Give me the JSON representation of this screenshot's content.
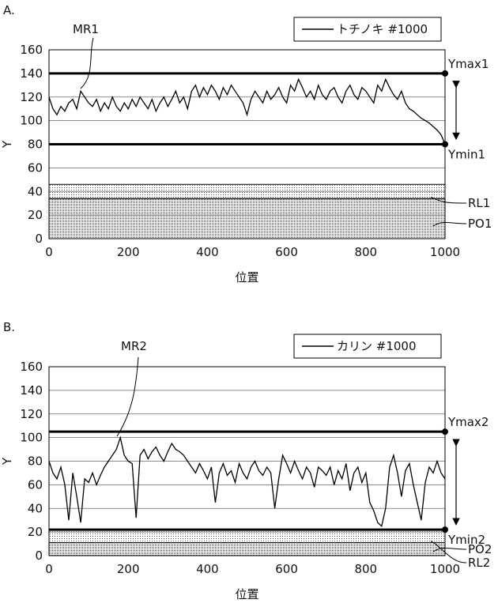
{
  "chart_data": [
    {
      "panel": "A.",
      "type": "line",
      "xlabel": "位置",
      "ylabel": "Y",
      "annotation": "MR1",
      "xlim": [
        0,
        1000
      ],
      "xticks": [
        0,
        200,
        400,
        600,
        800,
        1000
      ],
      "ylim": [
        0,
        160
      ],
      "yticks": [
        0,
        20,
        40,
        60,
        80,
        100,
        120,
        140,
        160
      ],
      "grid": true,
      "x": [
        0,
        10,
        20,
        30,
        40,
        50,
        60,
        70,
        80,
        90,
        100,
        110,
        120,
        130,
        140,
        150,
        160,
        170,
        180,
        190,
        200,
        210,
        220,
        230,
        240,
        250,
        260,
        270,
        280,
        290,
        300,
        310,
        320,
        330,
        340,
        350,
        360,
        370,
        380,
        390,
        400,
        410,
        420,
        430,
        440,
        450,
        460,
        470,
        480,
        490,
        500,
        510,
        520,
        530,
        540,
        550,
        560,
        570,
        580,
        590,
        600,
        610,
        620,
        630,
        640,
        650,
        660,
        670,
        680,
        690,
        700,
        710,
        720,
        730,
        740,
        750,
        760,
        770,
        780,
        790,
        800,
        810,
        820,
        830,
        840,
        850,
        860,
        870,
        880,
        890,
        900,
        910,
        920,
        930,
        940,
        950,
        960,
        970,
        980,
        990,
        1000
      ],
      "series": [
        {
          "name": "トチノキ #1000",
          "color": "#000000",
          "values": [
            120,
            110,
            105,
            112,
            108,
            115,
            118,
            110,
            125,
            120,
            115,
            112,
            118,
            108,
            115,
            110,
            120,
            112,
            108,
            115,
            110,
            118,
            112,
            120,
            115,
            110,
            118,
            108,
            115,
            120,
            112,
            118,
            125,
            115,
            120,
            110,
            125,
            130,
            120,
            128,
            122,
            130,
            125,
            118,
            128,
            122,
            130,
            125,
            120,
            115,
            105,
            118,
            125,
            120,
            115,
            125,
            118,
            122,
            128,
            120,
            115,
            130,
            125,
            135,
            128,
            120,
            125,
            118,
            130,
            122,
            118,
            125,
            128,
            120,
            115,
            125,
            130,
            122,
            118,
            128,
            125,
            120,
            115,
            130,
            125,
            135,
            128,
            122,
            118,
            125,
            115,
            110,
            108,
            105,
            102,
            100,
            98,
            95,
            92,
            88,
            80
          ]
        }
      ],
      "ymax": {
        "value": 140,
        "label": "Ymax1"
      },
      "ymin": {
        "value": 80,
        "label": "Ymin1"
      },
      "reference_line": {
        "value": 34,
        "label": "RL1"
      },
      "region": {
        "value": 46,
        "label": "PO1"
      }
    },
    {
      "panel": "B.",
      "type": "line",
      "xlabel": "位置",
      "ylabel": "Y",
      "annotation": "MR2",
      "xlim": [
        0,
        1000
      ],
      "xticks": [
        0,
        200,
        400,
        600,
        800,
        1000
      ],
      "ylim": [
        0,
        160
      ],
      "yticks": [
        0,
        20,
        40,
        60,
        80,
        100,
        120,
        140,
        160
      ],
      "grid": true,
      "x": [
        0,
        10,
        20,
        30,
        40,
        50,
        60,
        70,
        80,
        90,
        100,
        110,
        120,
        130,
        140,
        150,
        160,
        170,
        180,
        190,
        200,
        210,
        220,
        230,
        240,
        250,
        260,
        270,
        280,
        290,
        300,
        310,
        320,
        330,
        340,
        350,
        360,
        370,
        380,
        390,
        400,
        410,
        420,
        430,
        440,
        450,
        460,
        470,
        480,
        490,
        500,
        510,
        520,
        530,
        540,
        550,
        560,
        570,
        580,
        590,
        600,
        610,
        620,
        630,
        640,
        650,
        660,
        670,
        680,
        690,
        700,
        710,
        720,
        730,
        740,
        750,
        760,
        770,
        780,
        790,
        800,
        810,
        820,
        830,
        840,
        850,
        860,
        870,
        880,
        890,
        900,
        910,
        920,
        930,
        940,
        950,
        960,
        970,
        980,
        990,
        1000
      ],
      "series": [
        {
          "name": "カリン #1000",
          "color": "#000000",
          "values": [
            80,
            70,
            65,
            75,
            60,
            30,
            70,
            50,
            28,
            65,
            62,
            70,
            60,
            68,
            75,
            80,
            85,
            90,
            100,
            85,
            80,
            78,
            32,
            85,
            90,
            82,
            88,
            92,
            85,
            80,
            88,
            95,
            90,
            88,
            85,
            80,
            75,
            70,
            78,
            72,
            65,
            75,
            45,
            70,
            78,
            68,
            72,
            62,
            78,
            70,
            65,
            75,
            80,
            72,
            68,
            75,
            70,
            40,
            65,
            85,
            78,
            70,
            80,
            72,
            65,
            75,
            70,
            58,
            75,
            72,
            68,
            75,
            60,
            72,
            65,
            78,
            55,
            70,
            75,
            62,
            70,
            45,
            38,
            28,
            25,
            40,
            75,
            85,
            70,
            50,
            72,
            78,
            60,
            45,
            30,
            62,
            75,
            70,
            80,
            70,
            65
          ]
        }
      ],
      "ymax": {
        "value": 105,
        "label": "Ymax2"
      },
      "ymin": {
        "value": 22,
        "label": "Ymin2"
      },
      "reference_line": {
        "value": 11,
        "label": "RL2"
      },
      "region": {
        "value": 22,
        "label": "PO2"
      }
    }
  ]
}
